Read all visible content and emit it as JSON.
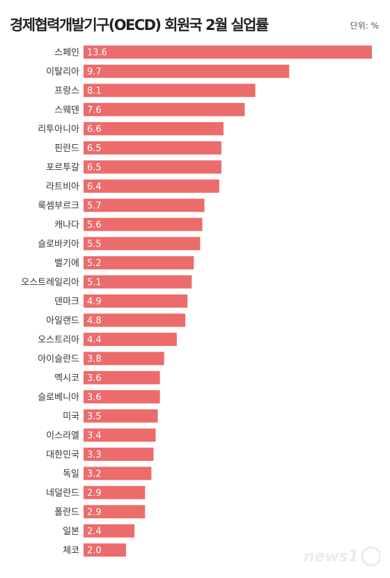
{
  "header": {
    "title": "경제협력개발기구(OECD) 회원국 2월 실업률",
    "unit": "단위: %"
  },
  "chart_data": {
    "type": "bar",
    "orientation": "horizontal",
    "title": "경제협력개발기구(OECD) 회원국 2월 실업률",
    "unit": "단위: %",
    "xlabel": "",
    "ylabel": "",
    "xlim": [
      0,
      13.6
    ],
    "grid": false,
    "legend": "none",
    "bar_color": "#ec6b6b",
    "categories": [
      "스페인",
      "이탈리아",
      "프랑스",
      "스웨덴",
      "리투아니아",
      "핀란드",
      "포르투갈",
      "라트비아",
      "룩셈부르크",
      "캐나다",
      "슬로바키아",
      "벨기에",
      "오스트레일리아",
      "덴마크",
      "아일랜드",
      "오스트리아",
      "아이슬란드",
      "멕시코",
      "슬로베니아",
      "미국",
      "이스라엘",
      "대한민국",
      "독일",
      "네덜란드",
      "폴란드",
      "일본",
      "체코"
    ],
    "values": [
      13.6,
      9.7,
      8.1,
      7.6,
      6.6,
      6.5,
      6.5,
      6.4,
      5.7,
      5.6,
      5.5,
      5.2,
      5.1,
      4.9,
      4.8,
      4.4,
      3.8,
      3.6,
      3.6,
      3.5,
      3.4,
      3.3,
      3.2,
      2.9,
      2.9,
      2.4,
      2.0
    ],
    "value_labels": [
      "13.6",
      "9.7",
      "8.1",
      "7.6",
      "6.6",
      "6.5",
      "6.5",
      "6.4",
      "5.7",
      "5.6",
      "5.5",
      "5.2",
      "5.1",
      "4.9",
      "4.8",
      "4.4",
      "3.8",
      "3.6",
      "3.6",
      "3.5",
      "3.4",
      "3.3",
      "3.2",
      "2.9",
      "2.9",
      "2.4",
      "2.0"
    ]
  },
  "watermark": {
    "text": "news1",
    "color": "#9aa7c7"
  }
}
